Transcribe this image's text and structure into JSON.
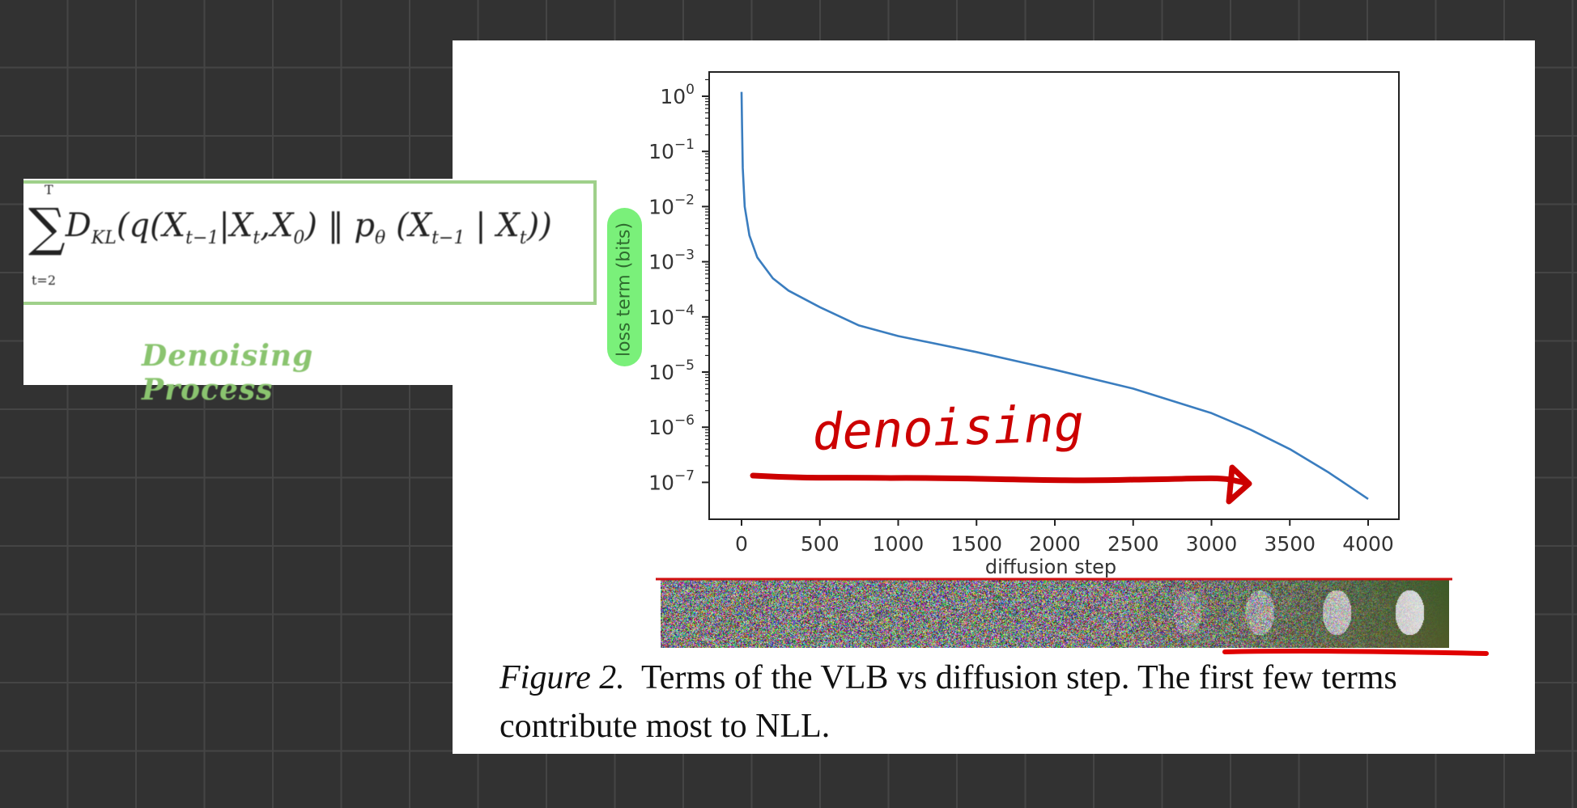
{
  "formula": {
    "sum_upper": "T",
    "sum_lower": "t=2",
    "expression_parts": [
      "D",
      "KL",
      "(q(X",
      "t−1",
      "|X",
      "t",
      ",X",
      "0",
      ") ‖ p",
      "θ",
      " (X",
      "t−1",
      " | X",
      "t",
      "))"
    ],
    "label": "Denoising Process"
  },
  "chart_data": {
    "type": "line",
    "xlabel": "diffusion step",
    "ylabel": "loss term (bits)",
    "yscale": "log",
    "xlim": [
      -200,
      4200
    ],
    "ylim": [
      1e-08,
      3
    ],
    "x_ticks": [
      0,
      500,
      1000,
      1500,
      2000,
      2500,
      3000,
      3500,
      4000
    ],
    "x_tick_labels": [
      "0",
      "500",
      "1000",
      "1500",
      "2000",
      "2500",
      "3000",
      "3500",
      "4000"
    ],
    "y_ticks": [
      1,
      0.1,
      0.01,
      0.001,
      0.0001,
      1e-05,
      1e-06,
      1e-07
    ],
    "y_tick_labels": [
      {
        "base": "10",
        "exp": "0"
      },
      {
        "base": "10",
        "exp": "−1"
      },
      {
        "base": "10",
        "exp": "−2"
      },
      {
        "base": "10",
        "exp": "−3"
      },
      {
        "base": "10",
        "exp": "−4"
      },
      {
        "base": "10",
        "exp": "−5"
      },
      {
        "base": "10",
        "exp": "−6"
      },
      {
        "base": "10",
        "exp": "−7"
      }
    ],
    "grid": false,
    "series": [
      {
        "color": "#3a7dbf",
        "x": [
          0,
          3,
          8,
          20,
          50,
          100,
          200,
          300,
          500,
          750,
          1000,
          1500,
          2000,
          2500,
          3000,
          3250,
          3500,
          3750,
          4000
        ],
        "y": [
          1.2,
          0.3,
          0.05,
          0.01,
          0.003,
          0.0012,
          0.0005,
          0.0003,
          0.00015,
          7e-05,
          4.5e-05,
          2.3e-05,
          1.1e-05,
          5e-06,
          1.8e-06,
          9e-07,
          4e-07,
          1.5e-07,
          5e-08
        ]
      }
    ]
  },
  "annotation": {
    "handwritten_text": "denoising",
    "ink_color": "#cc0000",
    "highlight_color": "#7af07a"
  },
  "caption": {
    "label": "Figure 2.",
    "text": "Terms of the VLB vs diffusion step. The first few terms contribute most to NLL."
  }
}
